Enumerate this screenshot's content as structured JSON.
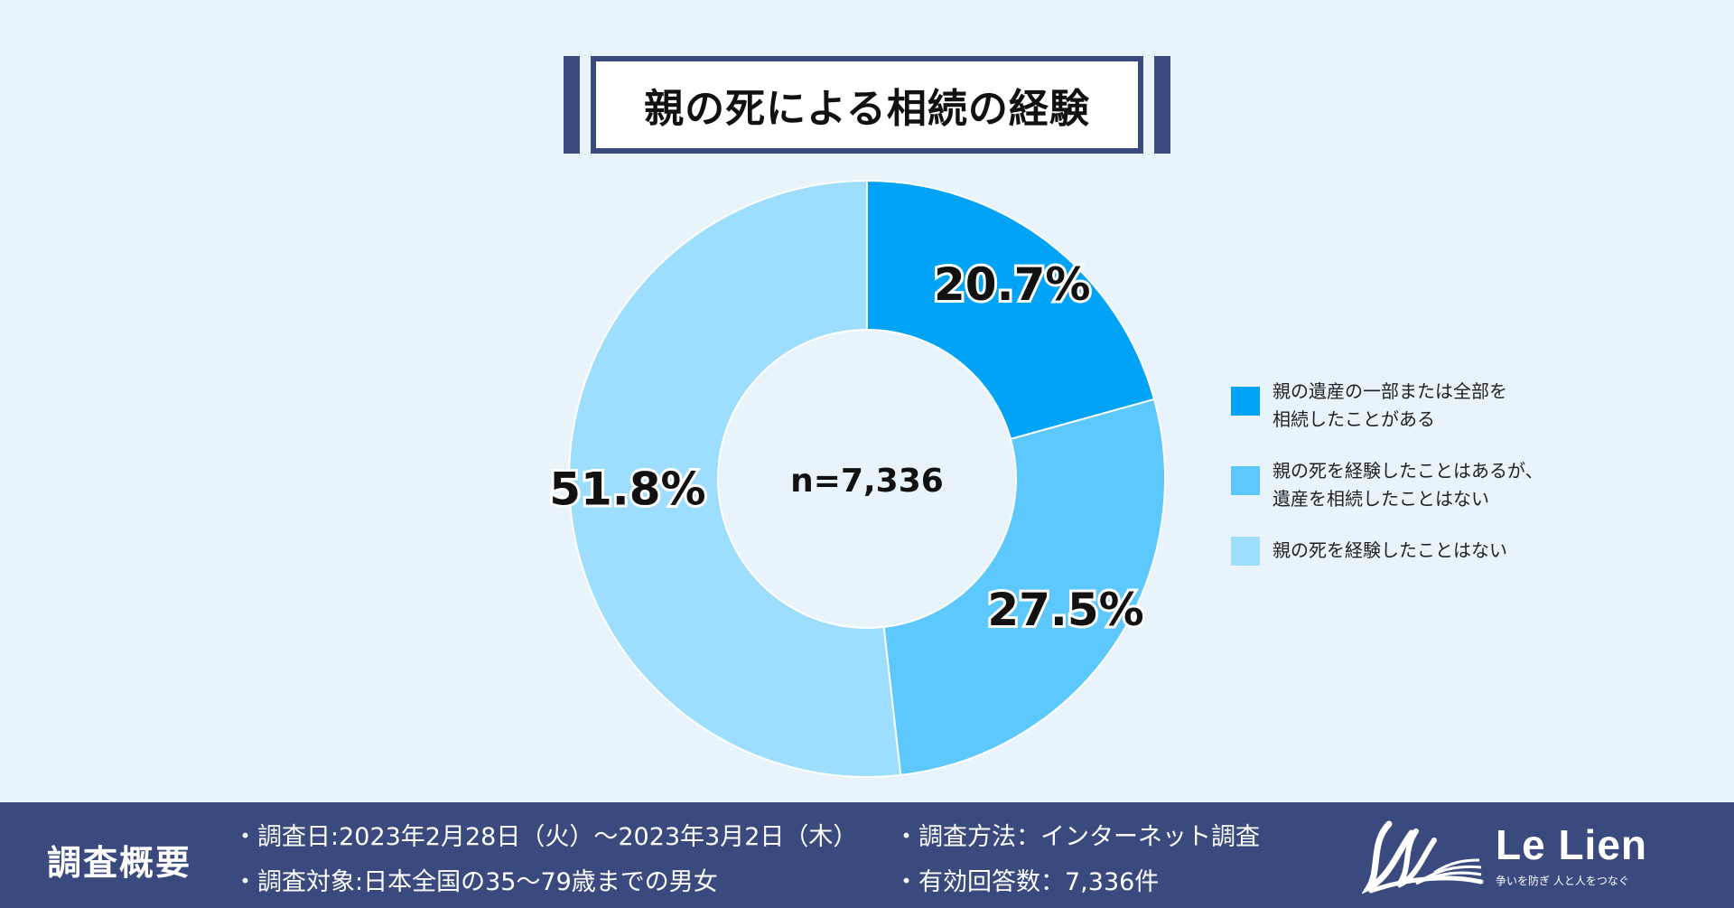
{
  "title": "親の死による相続の経験",
  "chart_data": {
    "type": "pie",
    "donut": true,
    "center_label": "n=7,336",
    "slices": [
      {
        "name": "親の遺産の一部または全部を相続したことがある",
        "value": 20.7,
        "label": "20.7%",
        "color": "#00a3f5"
      },
      {
        "name": "親の死を経験したことはあるが、遺産を相続したことはない",
        "value": 27.5,
        "label": "27.5%",
        "color": "#5cc8fd"
      },
      {
        "name": "親の死を経験したことはない",
        "value": 51.8,
        "label": "51.8%",
        "color": "#9dddfe"
      }
    ],
    "legend_position": "right"
  },
  "legend": [
    {
      "line1": "親の遺産の一部または全部を",
      "line2": "相続したことがある",
      "color": "#00a3f5"
    },
    {
      "line1": "親の死を経験したことはあるが、",
      "line2": "遺産を相続したことはない",
      "color": "#5cc8fd"
    },
    {
      "line1": "親の死を経験したことはない",
      "line2": "",
      "color": "#9dddfe"
    }
  ],
  "footer": {
    "heading": "調査概要",
    "date": "・調査日:2023年2月28日（火）〜2023年3月2日（木）",
    "target": "・調査対象:日本全国の35〜79歳までの男女",
    "method": "・調査方法：インターネット調査",
    "responses": "・有効回答数：7,336件"
  },
  "logo": {
    "name": "Le Lien",
    "tagline": "争いを防ぎ 人と人をつなぐ"
  },
  "colors": {
    "navy": "#3b4a7e",
    "background": "#e8f3fb"
  }
}
